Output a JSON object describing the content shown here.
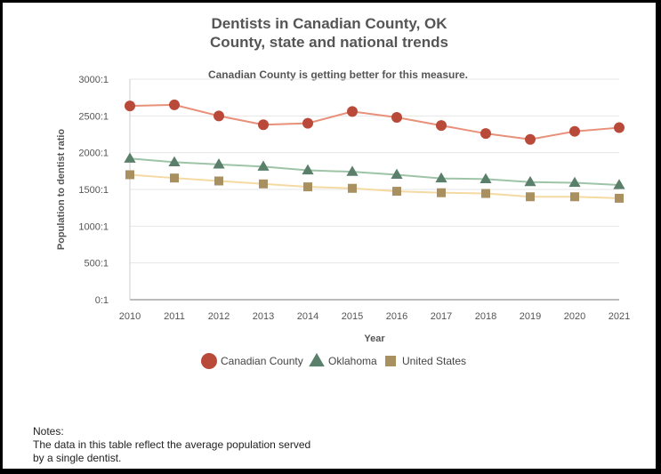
{
  "title_line1": "Dentists in Canadian County, OK",
  "title_line2": "County, state and national trends",
  "chart_data": {
    "type": "line",
    "title": "Dentists in Canadian County, OK County, state and national trends",
    "subtitle": "Canadian County is getting better for this measure.",
    "xlabel": "Year",
    "ylabel": "Population to dentist ratio",
    "x": [
      "2010",
      "2011",
      "2012",
      "2013",
      "2014",
      "2015",
      "2016",
      "2017",
      "2018",
      "2019",
      "2020",
      "2021"
    ],
    "ylim": [
      0,
      3000
    ],
    "yticks": [
      0,
      500,
      1000,
      1500,
      2000,
      2500,
      3000
    ],
    "ytick_labels": [
      "0:1",
      "500:1",
      "1000:1",
      "1500:1",
      "2000:1",
      "2500:1",
      "3000:1"
    ],
    "grid": true,
    "legend_position": "bottom",
    "series": [
      {
        "name": "Canadian County",
        "marker": "circle",
        "line_color": "#e8907a",
        "marker_color": "#b94a3a",
        "values": [
          2635,
          2650,
          2500,
          2380,
          2400,
          2560,
          2480,
          2370,
          2260,
          2180,
          2290,
          2340
        ]
      },
      {
        "name": "Oklahoma",
        "marker": "triangle",
        "line_color": "#9ec4a8",
        "marker_color": "#5a7f6a",
        "values": [
          1920,
          1870,
          1840,
          1810,
          1760,
          1740,
          1700,
          1650,
          1640,
          1600,
          1590,
          1560
        ]
      },
      {
        "name": "United States",
        "marker": "square",
        "line_color": "#f5d9a2",
        "marker_color": "#a89060",
        "values": [
          1700,
          1655,
          1615,
          1575,
          1535,
          1515,
          1475,
          1455,
          1445,
          1400,
          1400,
          1380
        ]
      }
    ]
  },
  "notes": {
    "heading": "Notes:",
    "line1": "The data in this table reflect the average population served",
    "line2": "by a single dentist."
  }
}
